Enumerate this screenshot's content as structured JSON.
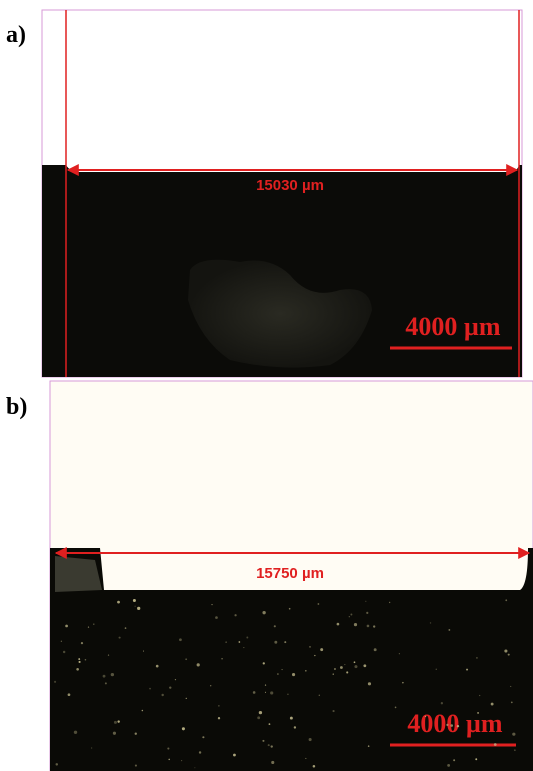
{
  "panels": [
    {
      "label": "a)",
      "measurement": "15030 µm",
      "scale_bar": "4000 µm"
    },
    {
      "label": "b)",
      "measurement": "15750 µm",
      "scale_bar": "4000 µm"
    }
  ]
}
